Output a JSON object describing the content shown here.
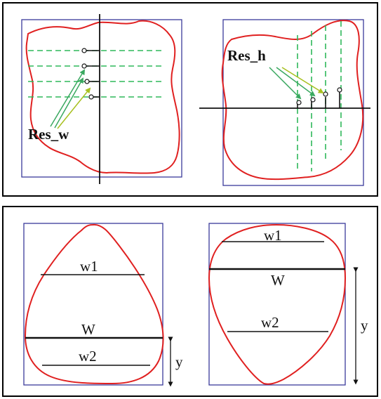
{
  "top_panel": {
    "left_figure": {
      "label": "Res_w"
    },
    "right_figure": {
      "label": "Res_h"
    }
  },
  "bottom_panel": {
    "left_figure": {
      "labels": {
        "w1": "w1",
        "W": "W",
        "w2": "w2",
        "y": "y"
      }
    },
    "right_figure": {
      "labels": {
        "w1": "w1",
        "W": "W",
        "w2": "w2",
        "y": "y"
      }
    }
  },
  "colors": {
    "panel_border": "#000000",
    "bounding_box": "#3a3a9a",
    "contour": "#e02020",
    "scan_line": "#2fb85a",
    "axis": "#111111",
    "arrow": "#3aa860"
  }
}
